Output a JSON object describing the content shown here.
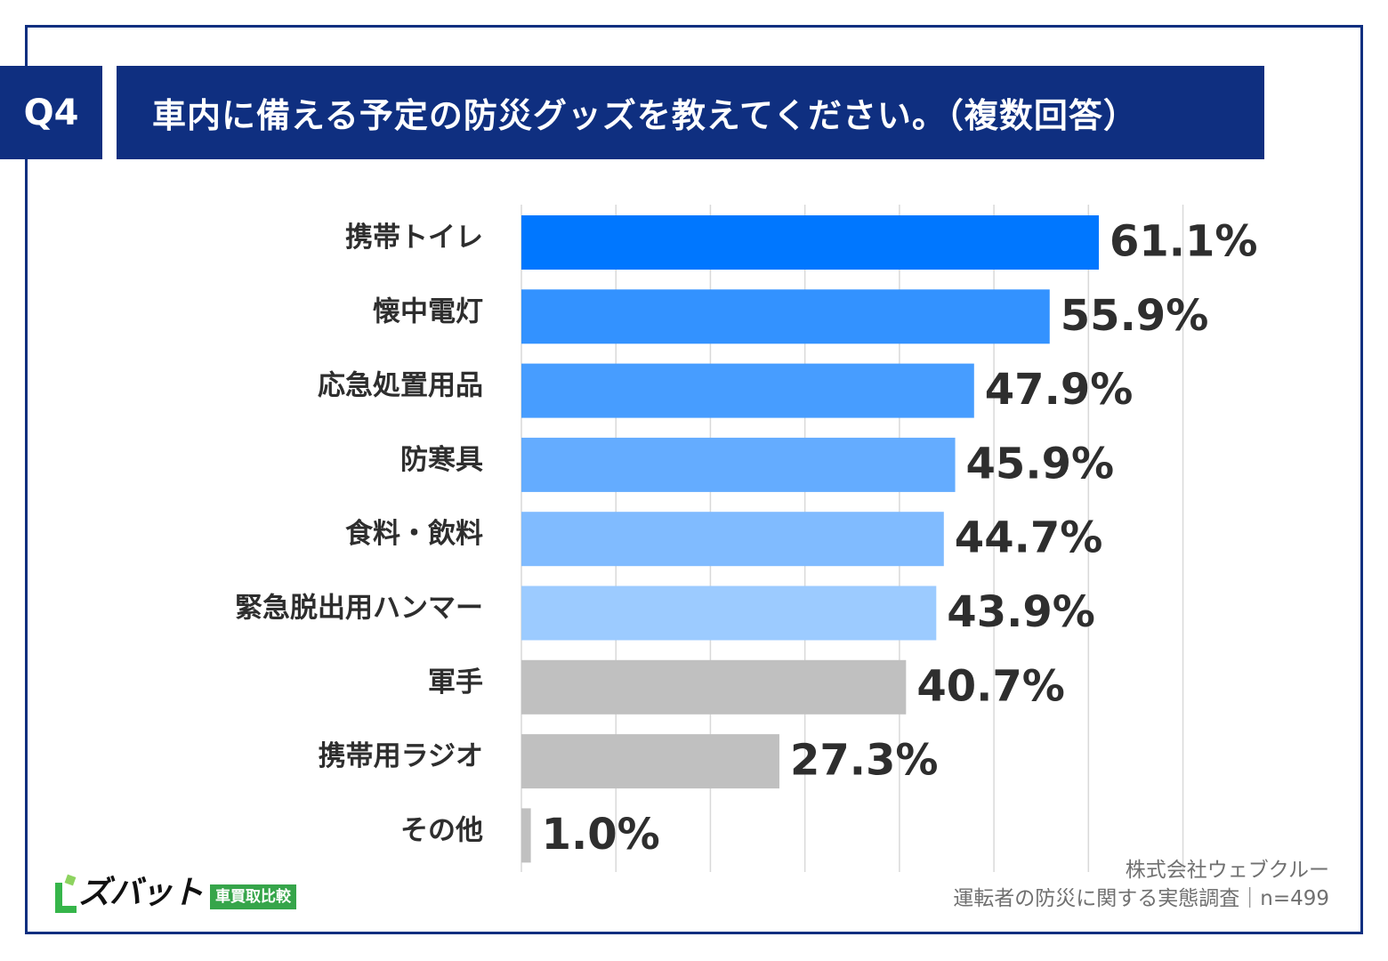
{
  "header": {
    "badge": "Q4",
    "title": "車内に備える予定の防災グッズを教えてください。（複数回答）"
  },
  "chart_data": {
    "type": "bar",
    "orientation": "horizontal",
    "title": "車内に備える予定の防災グッズを教えてください。（複数回答）",
    "categories": [
      "携帯トイレ",
      "懐中電灯",
      "応急処置用品",
      "防寒具",
      "食料・飲料",
      "緊急脱出用ハンマー",
      "軍手",
      "携帯用ラジオ",
      "その他"
    ],
    "values": [
      61.1,
      55.9,
      47.9,
      45.9,
      44.7,
      43.9,
      40.7,
      27.3,
      1.0
    ],
    "value_labels": [
      "61.1%",
      "55.9%",
      "47.9%",
      "45.9%",
      "44.7%",
      "43.9%",
      "40.7%",
      "27.3%",
      "1.0%"
    ],
    "colors": [
      "#0077ff",
      "#3392ff",
      "#479dff",
      "#64acff",
      "#80bbff",
      "#9ccbff",
      "#c0c0c0",
      "#c0c0c0",
      "#c0c0c0"
    ],
    "xlim": [
      0,
      70
    ],
    "grid": true,
    "xlabel": "",
    "ylabel": ""
  },
  "source": {
    "line1": "株式会社ウェブクルー",
    "line2": "運転者の防災に関する実態調査｜n=499"
  },
  "logo": {
    "name": "ズバット",
    "sub": "車買取比較"
  }
}
